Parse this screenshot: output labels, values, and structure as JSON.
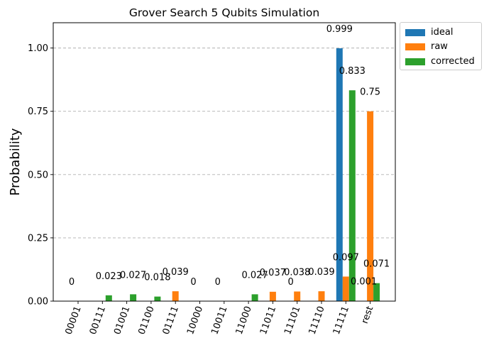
{
  "chart_data": {
    "type": "bar",
    "title": "Grover Search 5 Qubits Simulation",
    "xlabel": "",
    "ylabel": "Probability",
    "ylim": [
      0,
      1.1
    ],
    "yticks": [
      "0.00",
      "0.25",
      "0.50",
      "0.75",
      "1.00"
    ],
    "grid": "horizontal dashed",
    "legend_position": "outside top-right",
    "categories": [
      "00001",
      "00111",
      "01001",
      "01100",
      "01111",
      "10000",
      "10011",
      "11000",
      "11011",
      "11101",
      "11110",
      "11111",
      "rest"
    ],
    "series": [
      {
        "name": "ideal",
        "color": "#1f77b4",
        "values": [
          0,
          null,
          null,
          null,
          null,
          0,
          0,
          null,
          null,
          0,
          null,
          0.999,
          0.001
        ],
        "labels": [
          "0",
          null,
          null,
          null,
          null,
          "0",
          "0",
          null,
          null,
          "0",
          null,
          "0.999",
          "0.001"
        ]
      },
      {
        "name": "raw",
        "color": "#ff7f0e",
        "values": [
          null,
          null,
          null,
          null,
          0.039,
          null,
          null,
          null,
          0.037,
          0.038,
          0.039,
          0.097,
          0.75
        ],
        "labels": [
          null,
          null,
          null,
          null,
          "0.039",
          null,
          null,
          null,
          "0.037",
          "0.038",
          "0.039",
          "0.097",
          "0.75"
        ]
      },
      {
        "name": "corrected",
        "color": "#2ca02c",
        "values": [
          null,
          0.023,
          0.027,
          0.018,
          null,
          null,
          null,
          0.027,
          null,
          null,
          null,
          0.833,
          0.071
        ],
        "labels": [
          null,
          "0.023",
          "0.027",
          "0.018",
          null,
          null,
          null,
          "0.027",
          null,
          null,
          null,
          "0.833",
          "0.071"
        ]
      }
    ]
  }
}
